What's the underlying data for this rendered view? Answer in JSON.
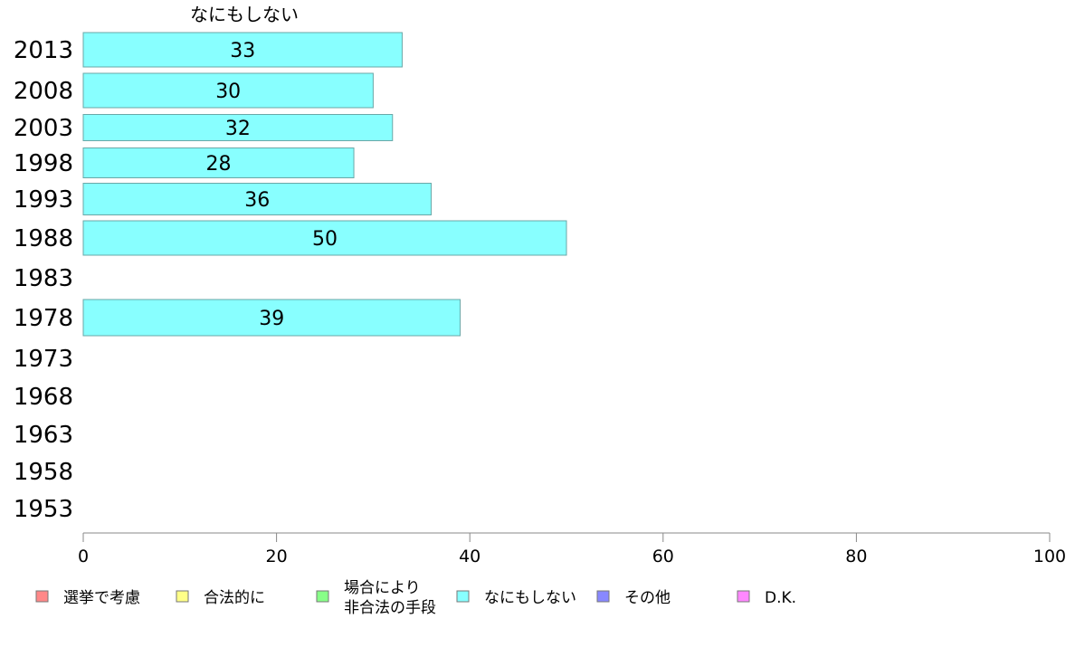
{
  "chart_data": {
    "type": "bar",
    "orientation": "horizontal",
    "title": "なにもしない",
    "categories": [
      "2013",
      "2008",
      "2003",
      "1998",
      "1993",
      "1988",
      "1983",
      "1978",
      "1973",
      "1968",
      "1963",
      "1958",
      "1953"
    ],
    "series": [
      {
        "name": "なにもしない",
        "color": "#88ffff",
        "values": [
          33,
          30,
          32,
          28,
          36,
          50,
          null,
          39,
          null,
          null,
          null,
          null,
          null
        ]
      }
    ],
    "xlim": [
      0,
      100
    ],
    "xticks": [
      0,
      20,
      40,
      60,
      80,
      100
    ],
    "grid": false,
    "legend_position": "bottom",
    "legend": [
      {
        "label": "選挙で考慮",
        "color": "#ff8888"
      },
      {
        "label": "合法的に",
        "color": "#ffff88"
      },
      {
        "label": "場合により\n非合法の手段",
        "color": "#88ff88"
      },
      {
        "label": "なにもしない",
        "color": "#88ffff"
      },
      {
        "label": "その他",
        "color": "#8888ff"
      },
      {
        "label": "D.K.",
        "color": "#ff88ff"
      }
    ]
  }
}
